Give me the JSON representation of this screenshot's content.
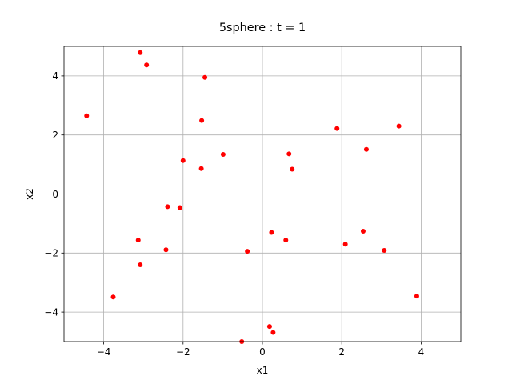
{
  "chart_data": {
    "type": "scatter",
    "title": "5sphere : t =  1",
    "xlabel": "x1",
    "ylabel": "x2",
    "xlim": [
      -5,
      5
    ],
    "ylim": [
      -5,
      5
    ],
    "xticks": [
      -4,
      -2,
      0,
      2,
      4
    ],
    "yticks": [
      -4,
      -2,
      0,
      2,
      4
    ],
    "xtick_labels": [
      "−4",
      "−2",
      "0",
      "2",
      "4"
    ],
    "ytick_labels": [
      "−4",
      "−2",
      "0",
      "2",
      "4"
    ],
    "grid": true,
    "marker_color": "#ff0000",
    "series": [
      {
        "x": [
          -3.08,
          -2.92,
          -1.45,
          -4.43,
          -1.53,
          -0.99,
          -2.0,
          -1.54,
          -2.39,
          -2.08,
          -3.13,
          -2.43,
          -3.08,
          -3.76,
          -0.38,
          0.23,
          0.59,
          0.67,
          0.75,
          1.88,
          2.62,
          3.44,
          2.54,
          2.09,
          3.07,
          3.89,
          0.18,
          0.27,
          -0.52
        ],
        "y": [
          4.79,
          4.37,
          3.95,
          2.65,
          2.49,
          1.34,
          1.13,
          0.86,
          -0.43,
          -0.46,
          -1.56,
          -1.89,
          -2.4,
          -3.49,
          -1.94,
          -1.3,
          -1.56,
          1.36,
          0.84,
          2.22,
          1.51,
          2.3,
          -1.26,
          -1.7,
          -1.91,
          -3.46,
          -4.49,
          -4.69,
          -5.0
        ]
      }
    ]
  }
}
